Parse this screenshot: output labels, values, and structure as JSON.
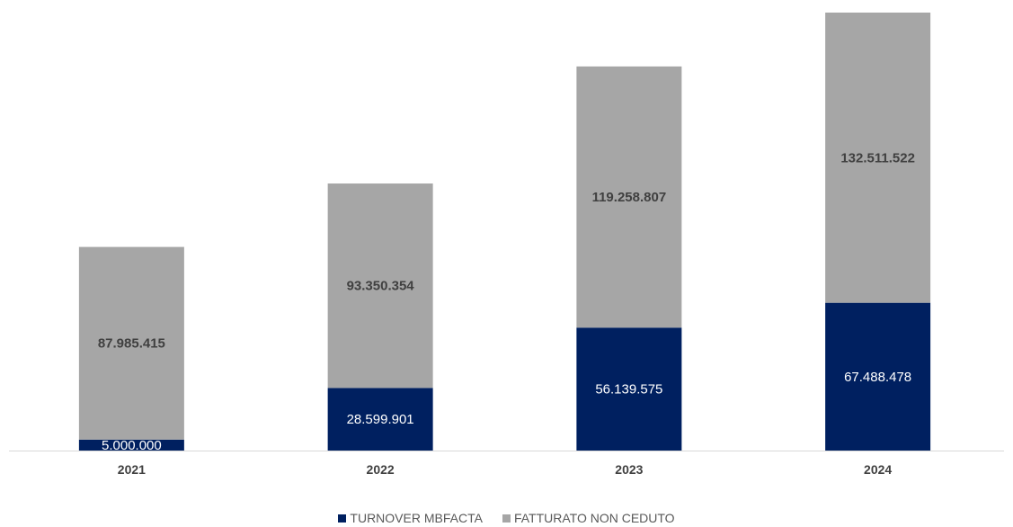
{
  "chart_data": {
    "type": "bar",
    "stacked": true,
    "categories": [
      "2021",
      "2022",
      "2023",
      "2024"
    ],
    "series": [
      {
        "name": "TURNOVER MBFACTA",
        "color": "#002060",
        "label_color": "#ffffff",
        "values": [
          5000000,
          28599901,
          56139575,
          67488478
        ],
        "labels": [
          "5.000.000",
          "28.599.901",
          "56.139.575",
          "67.488.478"
        ]
      },
      {
        "name": "FATTURATO NON CEDUTO",
        "color": "#a6a6a6",
        "label_color": "#404040",
        "values": [
          87985415,
          93350354,
          119258807,
          132511522
        ],
        "labels": [
          "87.985.415",
          "93.350.354",
          "119.258.807",
          "132.511.522"
        ]
      }
    ],
    "title": "",
    "xlabel": "",
    "ylabel": "",
    "ylim": [
      0,
      200000000
    ],
    "grid": false,
    "legend_position": "bottom"
  }
}
